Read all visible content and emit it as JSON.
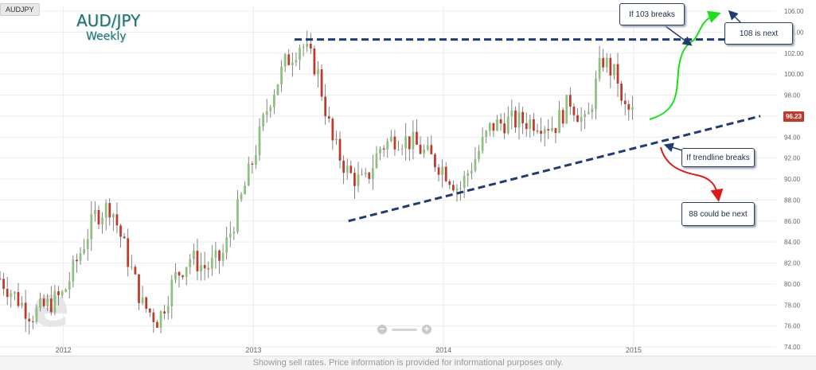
{
  "symbol_tag": "AUDJPY",
  "watermark_icon": "e-logo-watermark",
  "current_price": "96.23",
  "footer_text": "Showing sell rates. Price information is provided for informational purposes only.",
  "zoom": {
    "minus": "−",
    "plus": "+"
  },
  "annotations": {
    "break_103": "If 103 breaks",
    "next_108": "108 is next",
    "trendline_breaks": "If trendline breaks",
    "next_88": "88 could be next"
  },
  "colors": {
    "up_candle": "#8fc07e",
    "down_candle": "#c0392b",
    "trendline": "#1f3d73",
    "arrow_up": "#19e019",
    "arrow_down": "#e01919",
    "price_tag": "#c0392b"
  },
  "chart_data": {
    "type": "candlestick",
    "title": "AUD/JPY",
    "subtitle": "Weekly",
    "x_tick_labels": [
      "2012",
      "2013",
      "2014",
      "2015"
    ],
    "y_tick_labels": [
      "74.00",
      "76.00",
      "78.00",
      "80.00",
      "82.00",
      "84.00",
      "86.00",
      "88.00",
      "90.00",
      "92.00",
      "94.00",
      "96.00",
      "98.00",
      "100.00",
      "102.00",
      "104.00",
      "106.00"
    ],
    "ylim": [
      74,
      106
    ],
    "grid": true,
    "resistance_level": 103.3,
    "support_trendline": [
      {
        "date": "2013-07",
        "value": 86.0
      },
      {
        "date": "2015-09",
        "value": 96.0
      }
    ],
    "anchors": [
      {
        "date": "2011-09",
        "value": 80.5
      },
      {
        "date": "2011-11",
        "value": 77.0
      },
      {
        "date": "2012-01",
        "value": 79.0
      },
      {
        "date": "2012-03",
        "value": 86.5
      },
      {
        "date": "2012-04",
        "value": 87.5
      },
      {
        "date": "2012-06",
        "value": 78.0
      },
      {
        "date": "2012-07",
        "value": 76.5
      },
      {
        "date": "2012-08",
        "value": 80.5
      },
      {
        "date": "2012-09",
        "value": 82.5
      },
      {
        "date": "2012-10",
        "value": 81.5
      },
      {
        "date": "2012-11",
        "value": 82.5
      },
      {
        "date": "2012-12",
        "value": 87.0
      },
      {
        "date": "2013-01",
        "value": 92.0
      },
      {
        "date": "2013-02",
        "value": 97.5
      },
      {
        "date": "2013-03",
        "value": 101.0
      },
      {
        "date": "2013-04",
        "value": 103.0
      },
      {
        "date": "2013-05",
        "value": 100.5
      },
      {
        "date": "2013-06",
        "value": 93.5
      },
      {
        "date": "2013-07",
        "value": 90.5
      },
      {
        "date": "2013-08",
        "value": 89.5
      },
      {
        "date": "2013-09",
        "value": 93.0
      },
      {
        "date": "2013-10",
        "value": 94.0
      },
      {
        "date": "2013-11",
        "value": 93.5
      },
      {
        "date": "2014-01",
        "value": 91.0
      },
      {
        "date": "2014-02",
        "value": 89.0
      },
      {
        "date": "2014-03",
        "value": 92.0
      },
      {
        "date": "2014-04",
        "value": 95.0
      },
      {
        "date": "2014-05",
        "value": 95.5
      },
      {
        "date": "2014-07",
        "value": 95.5
      },
      {
        "date": "2014-08",
        "value": 95.0
      },
      {
        "date": "2014-09",
        "value": 97.5
      },
      {
        "date": "2014-10",
        "value": 95.0
      },
      {
        "date": "2014-11",
        "value": 101.5
      },
      {
        "date": "2014-12",
        "value": 99.5
      },
      {
        "date": "2014-12",
        "value": 97.0
      },
      {
        "date": "2015-01",
        "value": 96.2
      }
    ]
  }
}
